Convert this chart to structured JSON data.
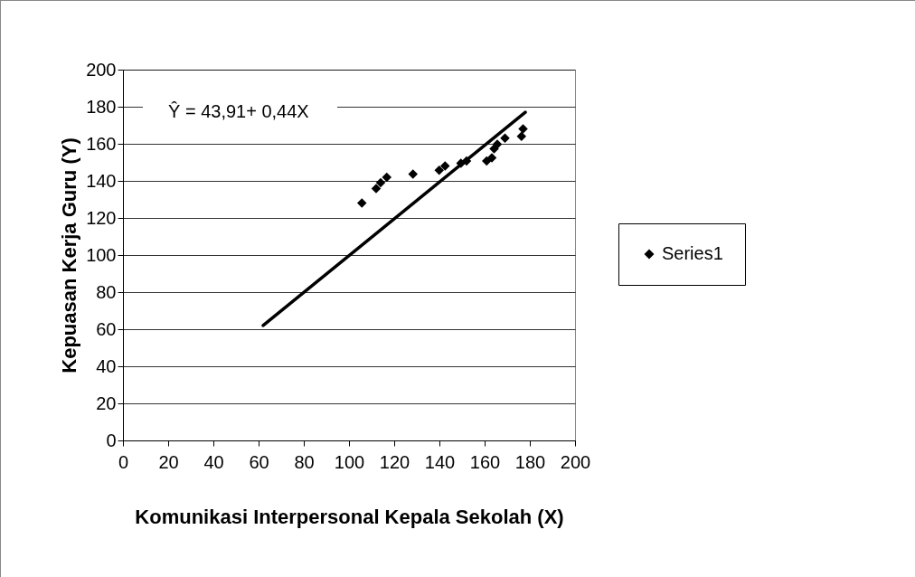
{
  "chart_data": {
    "type": "scatter",
    "xlabel": "Komunikasi Interpersonal Kepala Sekolah (X)",
    "ylabel": "Kepuasan Kerja Guru (Y)",
    "annotations": [
      "Ŷ = 43,91+ 0,44X"
    ],
    "series": [
      {
        "name": "Series1",
        "color": "#000000",
        "marker": "diamond",
        "x": [
          105.7,
          112,
          114,
          116.7,
          128.3,
          139.9,
          142.5,
          149.5,
          152,
          160.9,
          163.2,
          164.2,
          165.6,
          169,
          176.3,
          177
        ],
        "values": [
          128,
          135.8,
          139,
          142,
          143.7,
          145.7,
          148,
          149.5,
          150.7,
          150.7,
          152.4,
          157.3,
          159.8,
          163,
          164,
          168
        ]
      },
      {
        "type": "line",
        "color": "#000000",
        "x": [
          62,
          178
        ],
        "values": [
          62,
          177
        ]
      }
    ],
    "xlim": [
      0,
      200
    ],
    "xticks": [
      0,
      20,
      40,
      60,
      80,
      100,
      120,
      140,
      160,
      180,
      200
    ],
    "ylim": [
      0,
      200
    ],
    "yticks": [
      0,
      20,
      40,
      60,
      80,
      100,
      120,
      140,
      160,
      180,
      200
    ],
    "grid": "y",
    "legend": "right"
  }
}
